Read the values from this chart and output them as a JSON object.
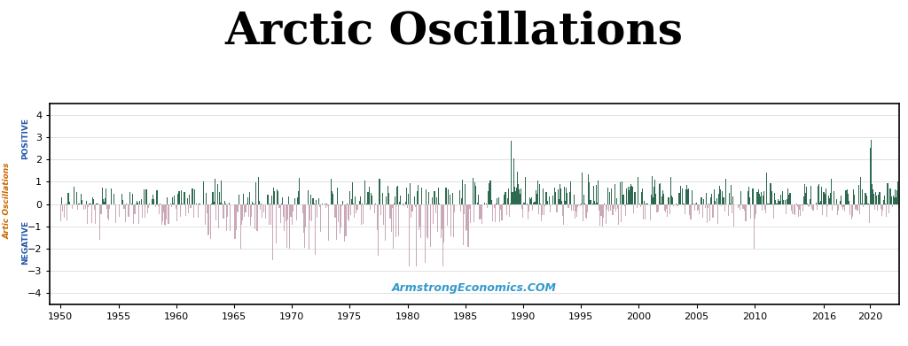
{
  "title": "Arctic Oscillations",
  "title_fontsize": 36,
  "ylabel_left": "Artic Oscillations",
  "ylabel_right_pos": "POSITIVE",
  "ylabel_right_neg": "NEGATIVE",
  "ylabel_color_left": "#cc6600",
  "ylabel_color_right": "#2255aa",
  "watermark": "ArmstrongEconomics.COM",
  "watermark_color": "#3399cc",
  "positive_color": "#2d6a4f",
  "negative_color": "#c9a8b8",
  "background_color": "#ffffff",
  "plot_bg_color": "#ffffff",
  "grid_color": "#dddddd",
  "ylim": [
    -4.5,
    4.5
  ],
  "yticks": [
    -4,
    -3,
    -2,
    -1,
    0,
    1,
    2,
    3,
    4
  ],
  "xlim": [
    1949.08,
    2022.5
  ],
  "xticks": [
    1950,
    1955,
    1960,
    1965,
    1970,
    1975,
    1980,
    1985,
    1990,
    1995,
    2000,
    2005,
    2010,
    2016,
    2020
  ],
  "figsize": [
    10.24,
    3.91
  ],
  "dpi": 100
}
